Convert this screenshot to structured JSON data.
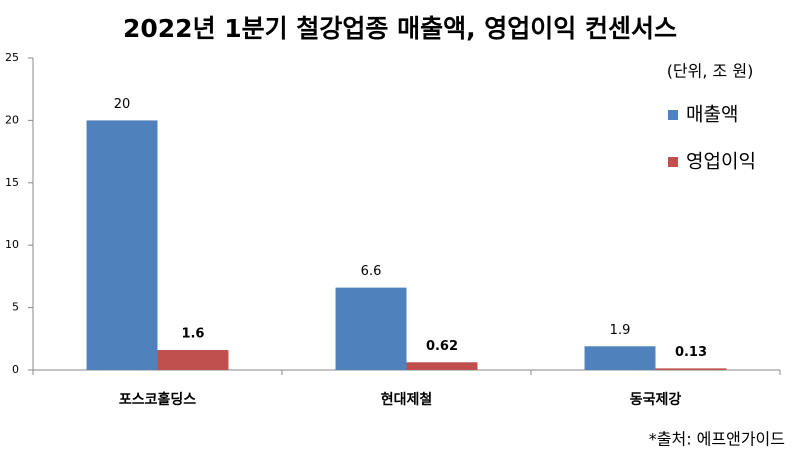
{
  "chart_data": {
    "type": "bar",
    "title": "2022년 1분기 철강업종 매출액, 영업이익 컨센서스",
    "unit_note": "(단위, 조 원)",
    "source": "*출처: 에프앤가이드",
    "categories": [
      "포스코홀딩스",
      "현대제철",
      "동국제강"
    ],
    "series": [
      {
        "name": "매출액",
        "color": "#4f81bd",
        "values": [
          20,
          6.6,
          1.9
        ]
      },
      {
        "name": "영업이익",
        "color": "#c0504d",
        "values": [
          1.6,
          0.62,
          0.13
        ]
      }
    ],
    "ylim": [
      0,
      25
    ],
    "yticks": [
      0,
      5,
      10,
      15,
      20,
      25
    ],
    "grid": false
  }
}
